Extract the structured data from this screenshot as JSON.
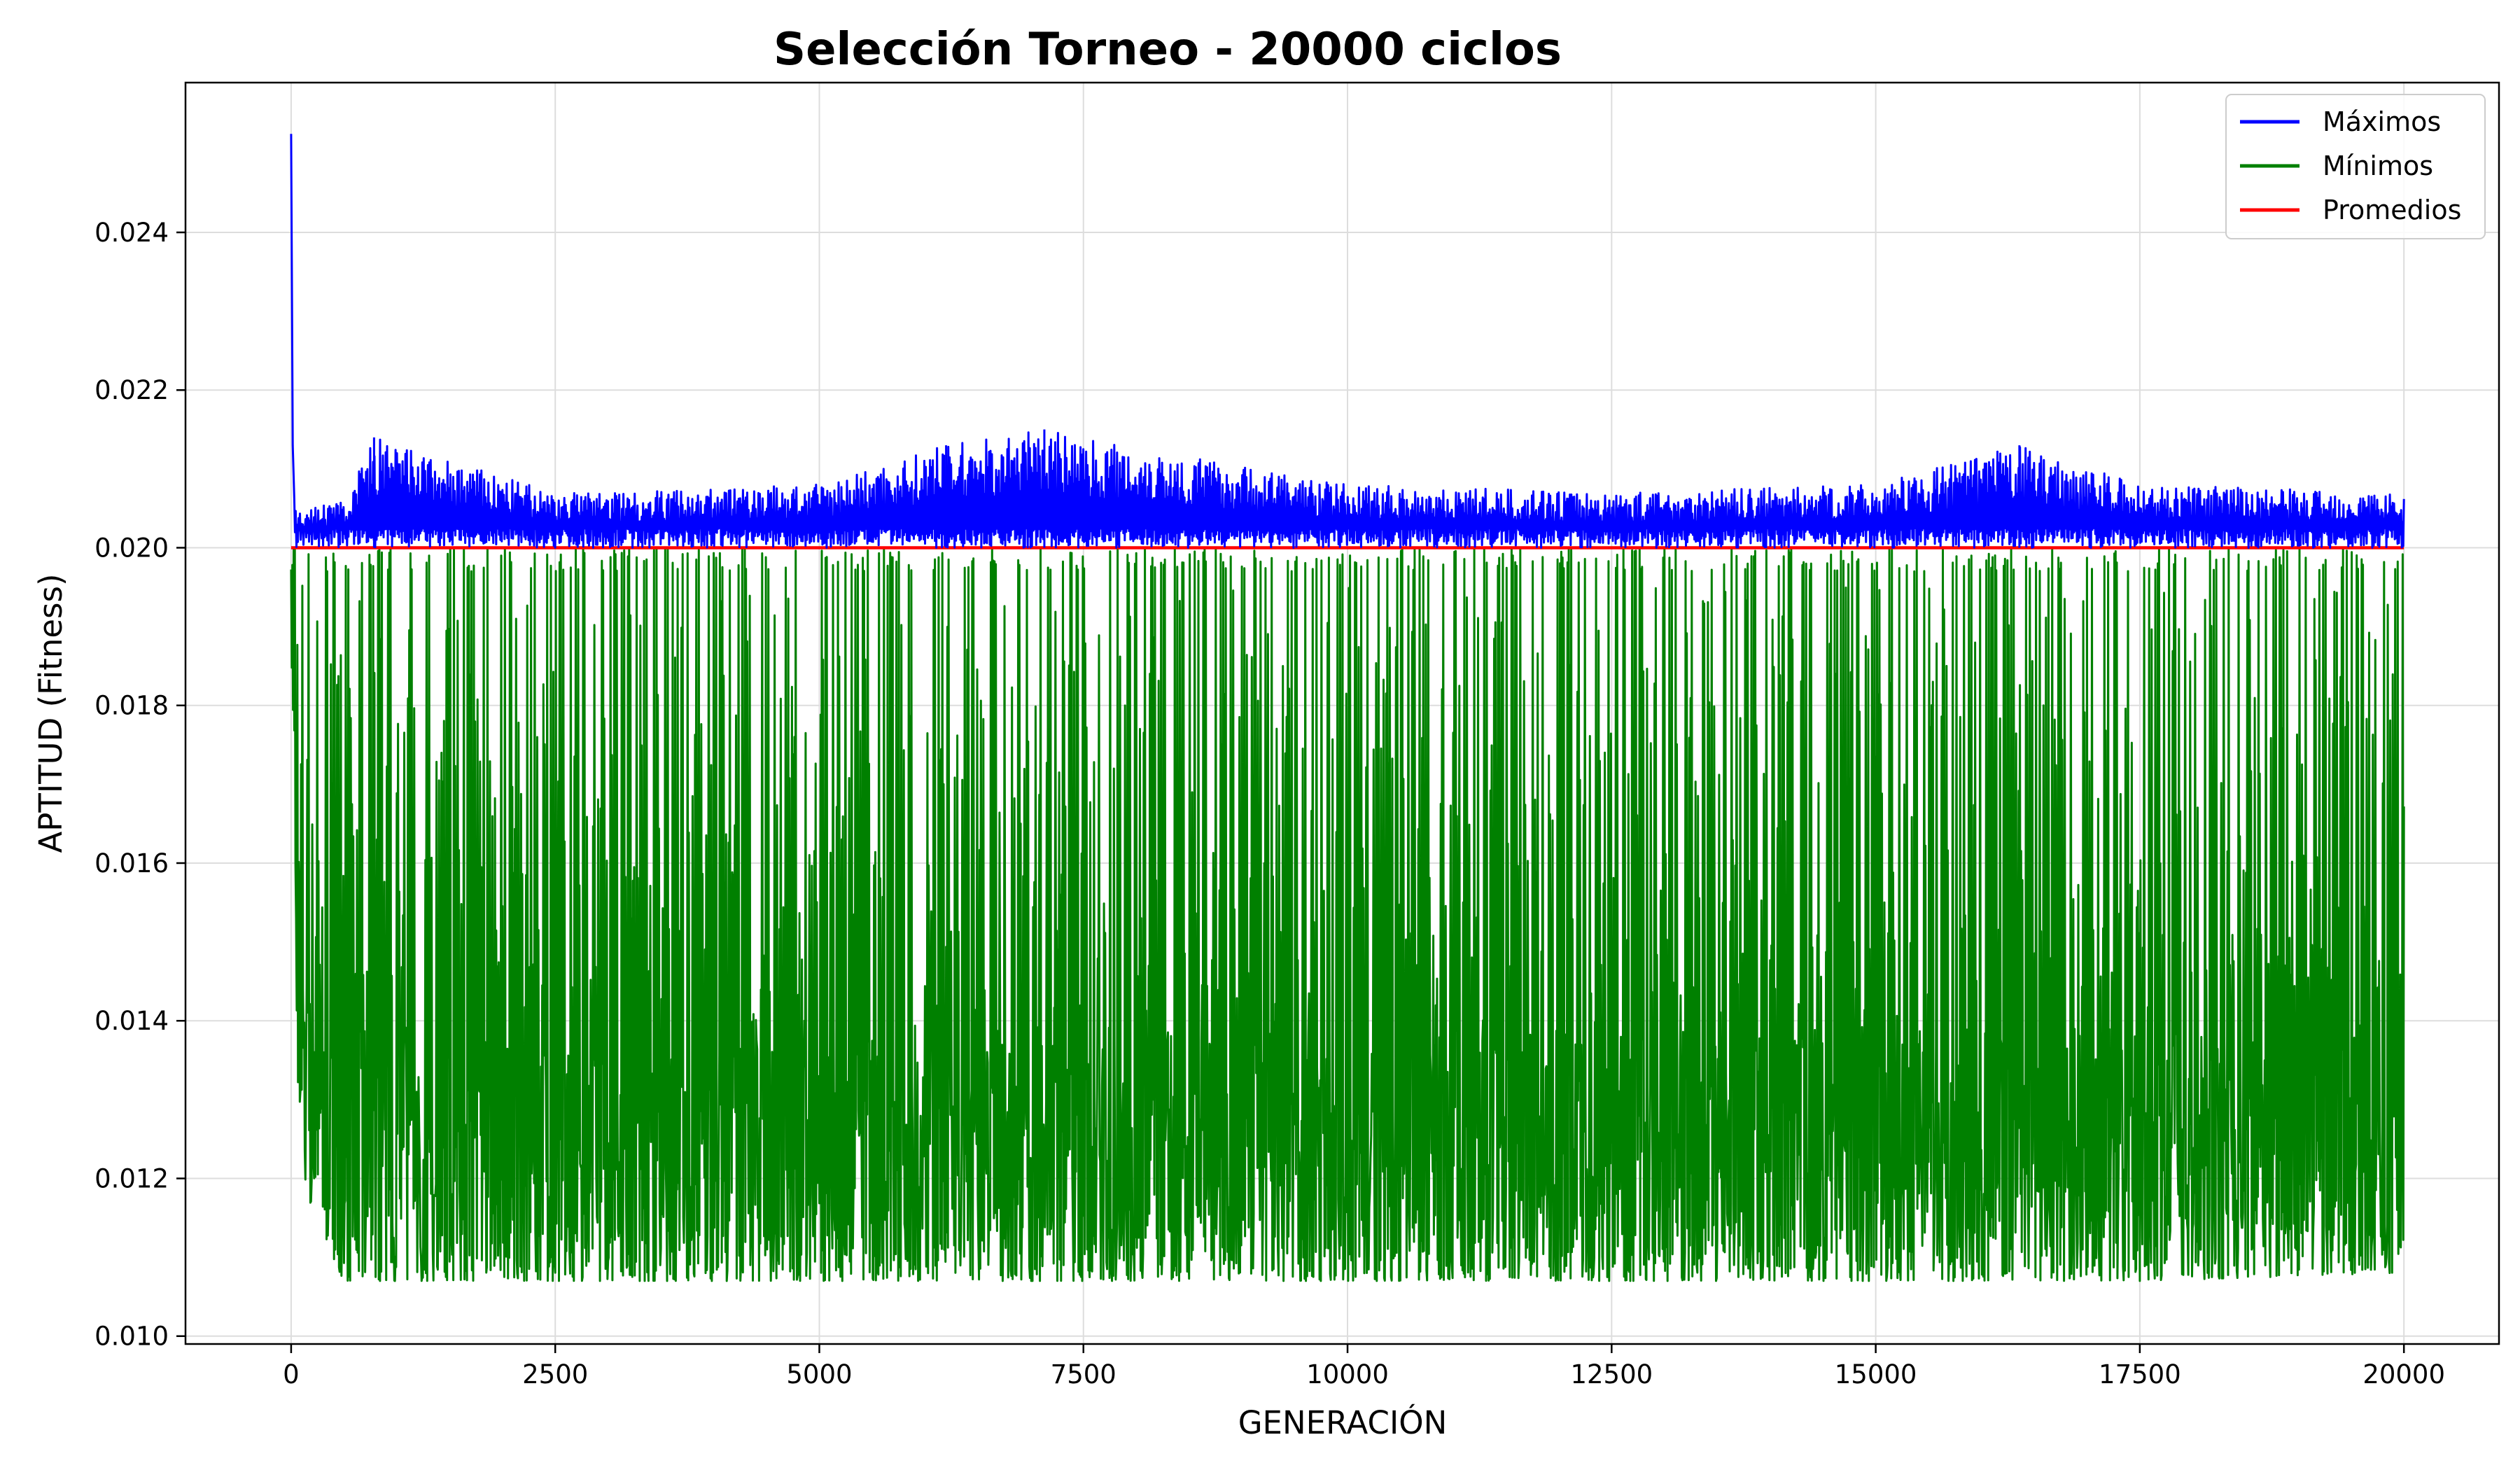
{
  "chart_data": {
    "type": "line",
    "title": "Selección Torneo - 20000 ciclos",
    "xlabel": "GENERACIÓN",
    "ylabel": "APTITUD (Fitness)",
    "xlim": [
      -1000,
      20900
    ],
    "ylim": [
      0.0099,
      0.0259
    ],
    "xticks": [
      0,
      2500,
      5000,
      7500,
      10000,
      12500,
      15000,
      17500,
      20000
    ],
    "xtick_labels": [
      "0",
      "2500",
      "5000",
      "7500",
      "10000",
      "12500",
      "15000",
      "17500",
      "20000"
    ],
    "yticks": [
      0.01,
      0.012,
      0.014,
      0.016,
      0.018,
      0.02,
      0.022,
      0.024
    ],
    "ytick_labels": [
      "0.010",
      "0.012",
      "0.014",
      "0.016",
      "0.018",
      "0.020",
      "0.022",
      "0.024"
    ],
    "grid": true,
    "legend_position": "top-right",
    "series": [
      {
        "name": "Máximos",
        "color": "#0000ff",
        "peak": {
          "x": 0,
          "y": 0.02525
        },
        "band": {
          "low": 0.02,
          "high": 0.0206,
          "spike_max": 0.0215
        },
        "x": [
          0,
          20,
          50,
          100,
          500,
          785,
          2500,
          5000,
          6200,
          7130,
          10000,
          12500,
          15000,
          16360,
          17500,
          20000
        ],
        "y": [
          0.02525,
          0.0213,
          0.0205,
          0.0205,
          0.0206,
          0.0214,
          0.0207,
          0.0208,
          0.0213,
          0.0215,
          0.0208,
          0.0207,
          0.0208,
          0.0213,
          0.0208,
          0.0207
        ]
      },
      {
        "name": "Mínimos",
        "color": "#008000",
        "band": {
          "low": 0.0106,
          "high": 0.02
        },
        "x": [
          0,
          50,
          100,
          500,
          2500,
          5000,
          7500,
          10000,
          12500,
          15000,
          17500,
          20000
        ],
        "y": [
          0.0188,
          0.0138,
          0.0118,
          0.0107,
          0.0107,
          0.0107,
          0.0107,
          0.0107,
          0.0107,
          0.0107,
          0.0107,
          0.0108
        ]
      },
      {
        "name": "Promedios",
        "color": "#ff0000",
        "x": [
          0,
          20000
        ],
        "y": [
          0.02,
          0.02
        ]
      }
    ]
  }
}
